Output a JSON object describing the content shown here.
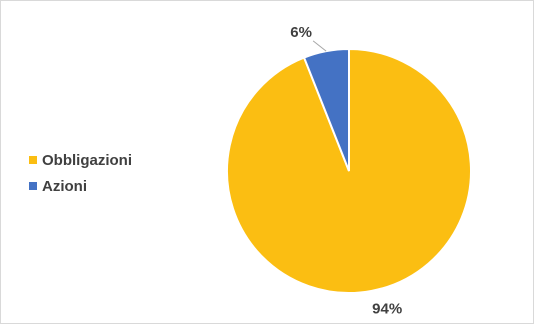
{
  "chart_data": {
    "type": "pie",
    "title": "",
    "legend_position": "left",
    "slices": [
      {
        "name": "Obbligazioni",
        "value": 94,
        "label": "94%",
        "color": "#FBBE12"
      },
      {
        "name": "Azioni",
        "value": 6,
        "label": "6%",
        "color": "#4472C4"
      }
    ]
  }
}
